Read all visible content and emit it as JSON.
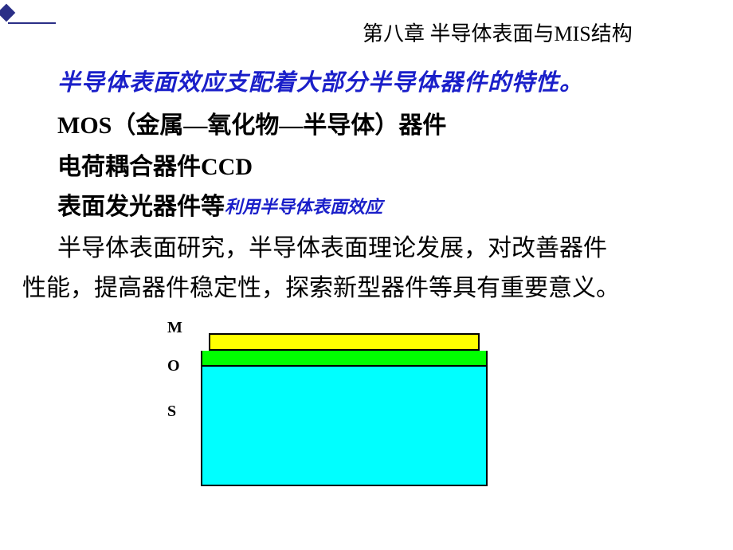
{
  "chapter_title": "第八章 半导体表面与MIS结构",
  "line1": "半导体表面效应支配着大部分半导体器件的特性。",
  "line2": "MOS（金属—氧化物—半导体）器件",
  "line3": "电荷耦合器件CCD",
  "line4_prefix": "表面发光器件等",
  "line4_suffix": "利用半导体表面效应",
  "line5": "半导体表面研究，半导体表面理论发展，对改善器件",
  "line6": "性能，提高器件稳定性，探索新型器件等具有重要意义。",
  "diagram": {
    "labels": {
      "m": "M",
      "o": "O",
      "s": "S"
    },
    "layer_m_color": "#ffff00",
    "layer_o_color": "#00ff00",
    "layer_s_color": "#00ffff",
    "border_color": "#000000"
  },
  "accent_color": "#2b2f87",
  "text_blue": "#1a1fc9"
}
